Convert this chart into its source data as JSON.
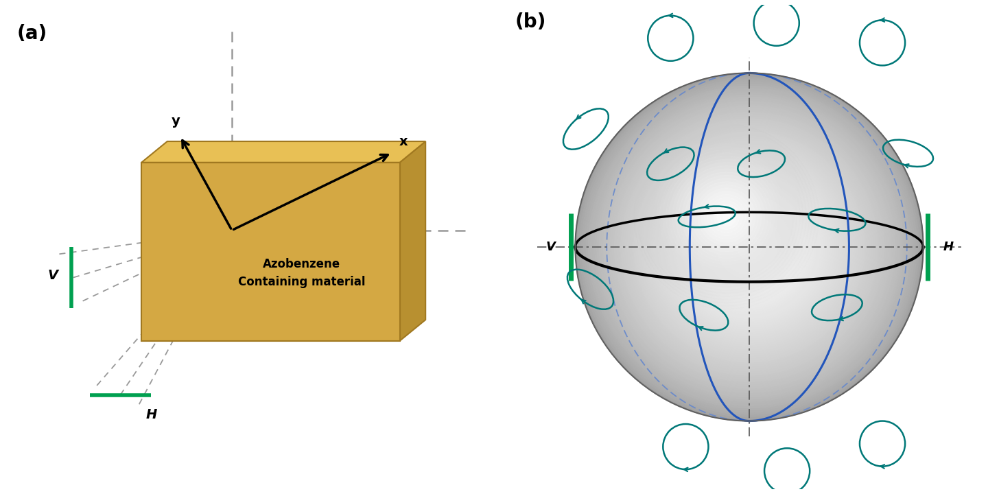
{
  "panel_a_label": "(a)",
  "panel_b_label": "(b)",
  "box_color_front": "#D4A843",
  "box_color_top": "#E8C055",
  "box_color_right": "#B89030",
  "box_edge_color": "#A07820",
  "green_color": "#00A050",
  "teal_color": "#007878",
  "blue_color_solid": "#2255BB",
  "blue_color_dash": "#6688CC",
  "gray_dashed_color": "#999999",
  "v_label": "V",
  "h_label": "H",
  "arrow_label_x": "x",
  "arrow_label_y": "y",
  "material_label_line1": "Azobenzene",
  "material_label_line2": "Containing material"
}
